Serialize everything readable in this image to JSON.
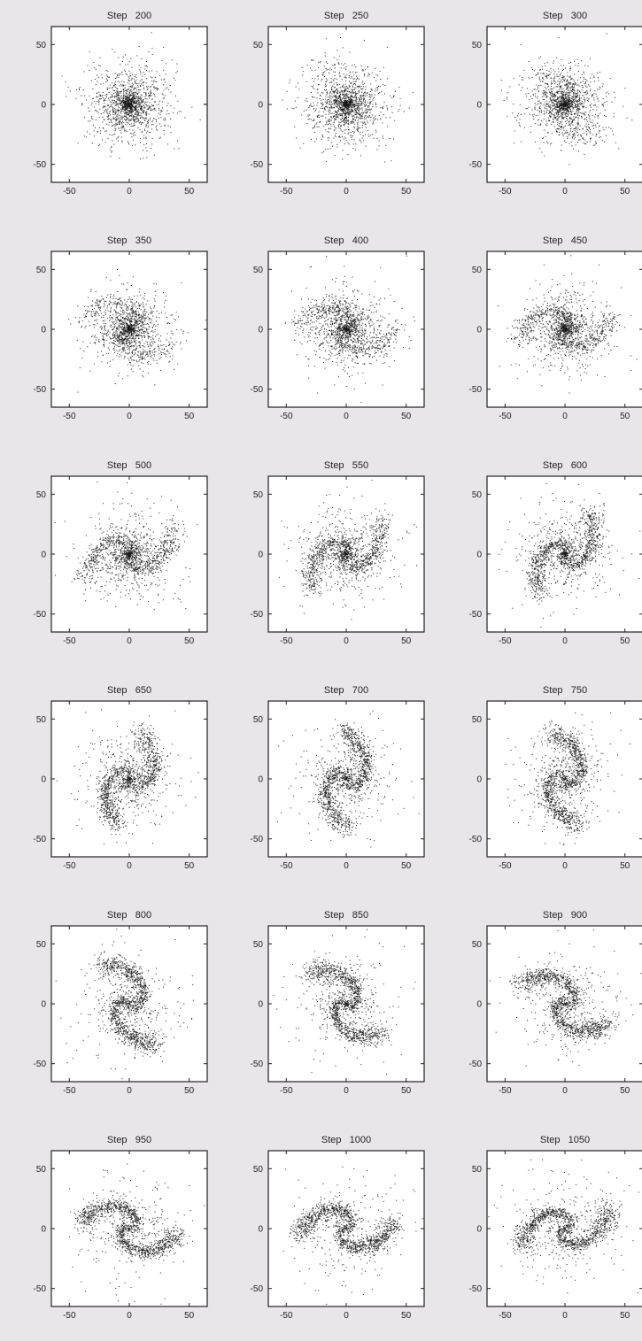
{
  "chart_data": {
    "type": "scatter",
    "layout": "6 rows x 3 columns grid",
    "xlim": [
      -65,
      65
    ],
    "ylim": [
      -65,
      65
    ],
    "xticks": [
      -50,
      0,
      50
    ],
    "yticks": [
      -50,
      0,
      50
    ],
    "grid": false,
    "marker_color": "#1a1a1a",
    "background": "#ffffff",
    "description": "Particle positions of a simulated disk galaxy; a diffuse cluster (step 200) evolves into a two-armed spiral (steps 600-1050).",
    "panels": [
      {
        "title": "Step   200",
        "step": 200,
        "arm_strength": 0.0,
        "spread": 20
      },
      {
        "title": "Step   250",
        "step": 250,
        "arm_strength": 0.05,
        "spread": 20
      },
      {
        "title": "Step   300",
        "step": 300,
        "arm_strength": 0.15,
        "spread": 19
      },
      {
        "title": "Step   350",
        "step": 350,
        "arm_strength": 0.25,
        "spread": 19
      },
      {
        "title": "Step   400",
        "step": 400,
        "arm_strength": 0.32,
        "spread": 20
      },
      {
        "title": "Step   450",
        "step": 450,
        "arm_strength": 0.4,
        "spread": 20
      },
      {
        "title": "Step   500",
        "step": 500,
        "arm_strength": 0.5,
        "spread": 21
      },
      {
        "title": "Step   550",
        "step": 550,
        "arm_strength": 0.58,
        "spread": 22
      },
      {
        "title": "Step   600",
        "step": 600,
        "arm_strength": 0.66,
        "spread": 22
      },
      {
        "title": "Step   650",
        "step": 650,
        "arm_strength": 0.72,
        "spread": 23
      },
      {
        "title": "Step   700",
        "step": 700,
        "arm_strength": 0.78,
        "spread": 24
      },
      {
        "title": "Step   750",
        "step": 750,
        "arm_strength": 0.82,
        "spread": 24
      },
      {
        "title": "Step   800",
        "step": 800,
        "arm_strength": 0.85,
        "spread": 25
      },
      {
        "title": "Step   850",
        "step": 850,
        "arm_strength": 0.87,
        "spread": 25
      },
      {
        "title": "Step   900",
        "step": 900,
        "arm_strength": 0.88,
        "spread": 25
      },
      {
        "title": "Step   950",
        "step": 950,
        "arm_strength": 0.9,
        "spread": 26
      },
      {
        "title": "Step   1000",
        "step": 1000,
        "arm_strength": 0.9,
        "spread": 27
      },
      {
        "title": "Step   1050",
        "step": 1050,
        "arm_strength": 0.92,
        "spread": 27
      }
    ]
  }
}
